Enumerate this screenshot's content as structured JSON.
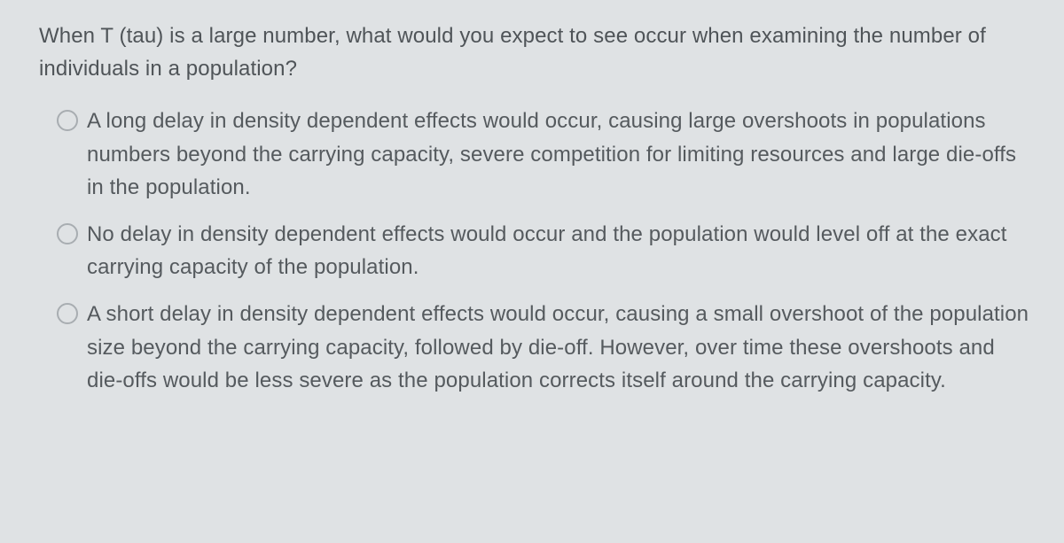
{
  "colors": {
    "background": "#dfe2e4",
    "text": "#55595c",
    "radio_border": "#a8adb1"
  },
  "typography": {
    "font_family": "Helvetica Neue, Helvetica, Arial, sans-serif",
    "font_size_pt": 18,
    "line_height": 1.55
  },
  "question": {
    "text": "When T (tau) is a large number, what would you expect to see occur when examining the number of individuals in a population?"
  },
  "options": [
    {
      "text": "A long delay in density dependent effects would occur, causing large overshoots in populations numbers beyond the carrying capacity, severe competition for limiting resources and large die-offs in the population.",
      "selected": false
    },
    {
      "text": "No delay in density dependent effects would occur and the population would level off at the exact carrying capacity of the population.",
      "selected": false
    },
    {
      "text": "A short delay in density dependent effects would occur, causing a small overshoot of the population size beyond the carrying capacity, followed by die-off. However, over time these overshoots and die-offs would be less severe as the population corrects itself around the carrying capacity.",
      "selected": false
    }
  ]
}
